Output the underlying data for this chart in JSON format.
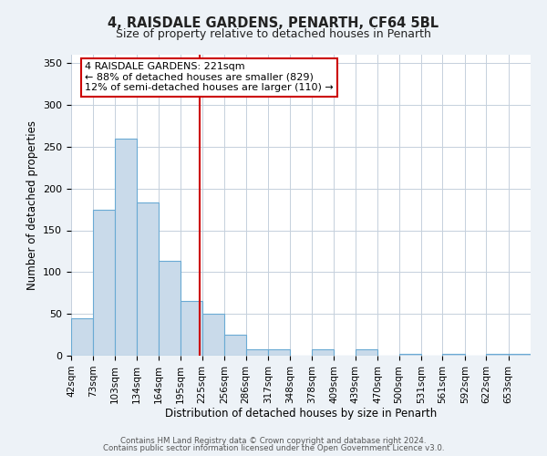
{
  "title": "4, RAISDALE GARDENS, PENARTH, CF64 5BL",
  "subtitle": "Size of property relative to detached houses in Penarth",
  "xlabel": "Distribution of detached houses by size in Penarth",
  "ylabel": "Number of detached properties",
  "bin_labels": [
    "42sqm",
    "73sqm",
    "103sqm",
    "134sqm",
    "164sqm",
    "195sqm",
    "225sqm",
    "256sqm",
    "286sqm",
    "317sqm",
    "348sqm",
    "378sqm",
    "409sqm",
    "439sqm",
    "470sqm",
    "500sqm",
    "531sqm",
    "561sqm",
    "592sqm",
    "622sqm",
    "653sqm"
  ],
  "bin_edges": [
    42,
    73,
    103,
    134,
    164,
    195,
    225,
    256,
    286,
    317,
    348,
    378,
    409,
    439,
    470,
    500,
    531,
    561,
    592,
    622,
    653,
    684
  ],
  "bar_heights": [
    45,
    175,
    260,
    183,
    113,
    65,
    50,
    25,
    8,
    8,
    0,
    8,
    0,
    8,
    0,
    2,
    0,
    2,
    0,
    2,
    2
  ],
  "bar_color": "#c9daea",
  "bar_edge_color": "#6aaad4",
  "vline_x": 221,
  "vline_color": "#cc0000",
  "annotation_title": "4 RAISDALE GARDENS: 221sqm",
  "annotation_line1": "← 88% of detached houses are smaller (829)",
  "annotation_line2": "12% of semi-detached houses are larger (110) →",
  "annotation_box_color": "#cc0000",
  "ylim": [
    0,
    360
  ],
  "yticks": [
    0,
    50,
    100,
    150,
    200,
    250,
    300,
    350
  ],
  "footer1": "Contains HM Land Registry data © Crown copyright and database right 2024.",
  "footer2": "Contains public sector information licensed under the Open Government Licence v3.0.",
  "bg_color": "#edf2f7",
  "plot_bg_color": "#ffffff",
  "grid_color": "#c5d0dc"
}
